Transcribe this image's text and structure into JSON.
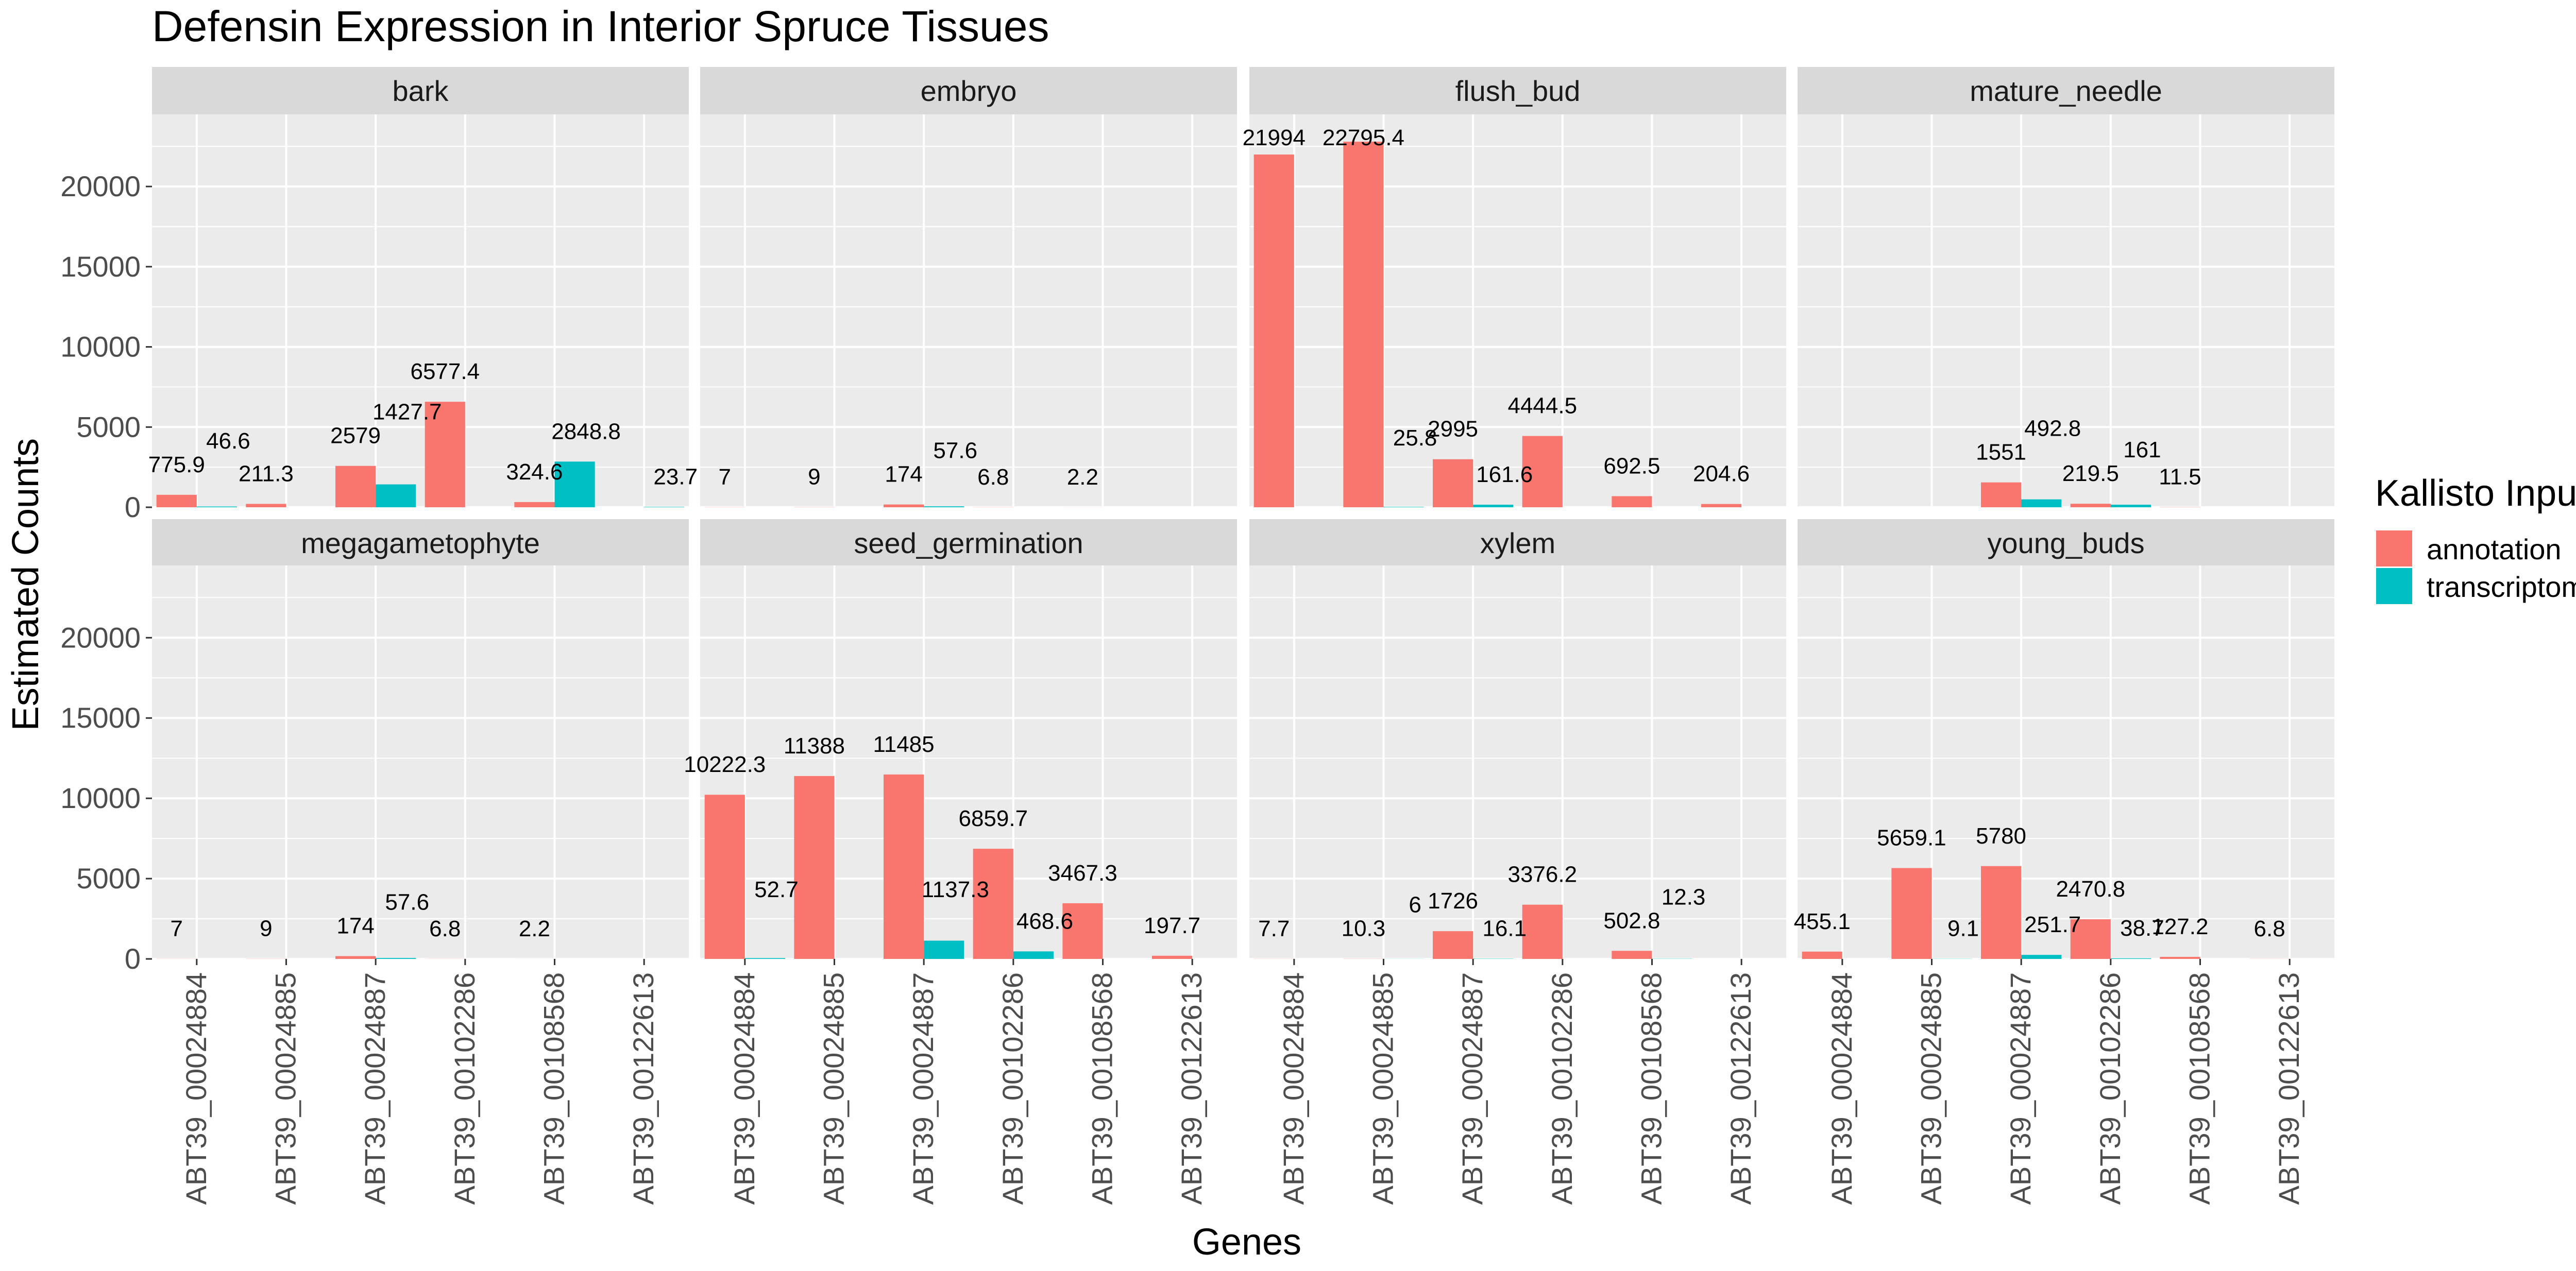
{
  "chart_data": {
    "type": "bar",
    "title": "Defensin Expression in Interior Spruce Tissues",
    "xlabel": "Genes",
    "ylabel": "Estimated Counts",
    "ylim": [
      0,
      24500
    ],
    "yticks": [
      0,
      5000,
      10000,
      15000,
      20000
    ],
    "grid": true,
    "legend": {
      "title": "Kallisto Input",
      "position": "right",
      "entries": [
        {
          "name": "annotation",
          "color": "#F8766D"
        },
        {
          "name": "transcriptome",
          "color": "#00BFC4"
        }
      ]
    },
    "categories": [
      "ABT39_00024884",
      "ABT39_00024885",
      "ABT39_00024887",
      "ABT39_00102286",
      "ABT39_00108568",
      "ABT39_00122613"
    ],
    "panels": [
      {
        "name": "bark",
        "series": [
          {
            "name": "annotation",
            "values": [
              775.9,
              211.3,
              2579,
              6577.4,
              324.6,
              null
            ]
          },
          {
            "name": "transcriptome",
            "values": [
              46.6,
              null,
              1427.7,
              null,
              2848.8,
              23.7
            ]
          }
        ]
      },
      {
        "name": "embryo",
        "series": [
          {
            "name": "annotation",
            "values": [
              7,
              9,
              174,
              6.8,
              2.2,
              null
            ]
          },
          {
            "name": "transcriptome",
            "values": [
              null,
              null,
              57.6,
              null,
              null,
              null
            ]
          }
        ]
      },
      {
        "name": "flush_bud",
        "series": [
          {
            "name": "annotation",
            "values": [
              21994,
              22795.4,
              2995,
              4444.5,
              692.5,
              204.6
            ]
          },
          {
            "name": "transcriptome",
            "values": [
              null,
              25.8,
              161.6,
              null,
              null,
              null
            ]
          }
        ]
      },
      {
        "name": "mature_needle",
        "series": [
          {
            "name": "annotation",
            "values": [
              null,
              null,
              1551,
              219.5,
              11.5,
              null
            ]
          },
          {
            "name": "transcriptome",
            "values": [
              null,
              null,
              492.8,
              161,
              null,
              null
            ]
          }
        ]
      },
      {
        "name": "megagametophyte",
        "series": [
          {
            "name": "annotation",
            "values": [
              7,
              9,
              174,
              6.8,
              2.2,
              null
            ]
          },
          {
            "name": "transcriptome",
            "values": [
              null,
              null,
              57.6,
              null,
              null,
              null
            ]
          }
        ]
      },
      {
        "name": "seed_germination",
        "series": [
          {
            "name": "annotation",
            "values": [
              10222.3,
              11388,
              11485,
              6859.7,
              3467.3,
              197.7
            ]
          },
          {
            "name": "transcriptome",
            "values": [
              52.7,
              null,
              1137.3,
              468.6,
              null,
              null
            ]
          }
        ]
      },
      {
        "name": "xylem",
        "series": [
          {
            "name": "annotation",
            "values": [
              7.7,
              10.3,
              1726,
              3376.2,
              502.8,
              null
            ]
          },
          {
            "name": "transcriptome",
            "values": [
              null,
              6,
              16.1,
              null,
              12.3,
              null
            ]
          }
        ]
      },
      {
        "name": "young_buds",
        "series": [
          {
            "name": "annotation",
            "values": [
              455.1,
              5659.1,
              5780,
              2470.8,
              127.2,
              6.8
            ]
          },
          {
            "name": "transcriptome",
            "values": [
              null,
              9.1,
              251.7,
              38.7,
              null,
              null
            ]
          }
        ]
      }
    ]
  }
}
